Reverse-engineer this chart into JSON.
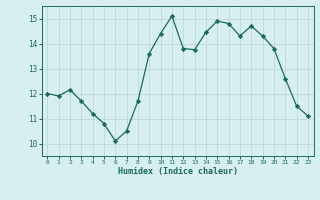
{
  "x": [
    0,
    1,
    2,
    3,
    4,
    5,
    6,
    7,
    8,
    9,
    10,
    11,
    12,
    13,
    14,
    15,
    16,
    17,
    18,
    19,
    20,
    21,
    22,
    23
  ],
  "y": [
    12.0,
    11.9,
    12.15,
    11.7,
    11.2,
    10.8,
    10.1,
    10.5,
    11.7,
    13.6,
    14.4,
    15.1,
    13.8,
    13.75,
    14.45,
    14.9,
    14.8,
    14.3,
    14.7,
    14.3,
    13.8,
    12.6,
    11.5,
    11.1
  ],
  "xlabel": "Humidex (Indice chaleur)",
  "ylim": [
    9.5,
    15.5
  ],
  "xlim": [
    -0.5,
    23.5
  ],
  "yticks": [
    10,
    11,
    12,
    13,
    14,
    15
  ],
  "xticks": [
    0,
    1,
    2,
    3,
    4,
    5,
    6,
    7,
    8,
    9,
    10,
    11,
    12,
    13,
    14,
    15,
    16,
    17,
    18,
    19,
    20,
    21,
    22,
    23
  ],
  "line_color": "#1a6b5a",
  "marker_color": "#1a6b5a",
  "bg_color": "#d8efef",
  "grid_color": "#c0d8d8",
  "tick_color": "#1a6b5a",
  "label_color": "#1a6b5a",
  "font_family": "monospace"
}
